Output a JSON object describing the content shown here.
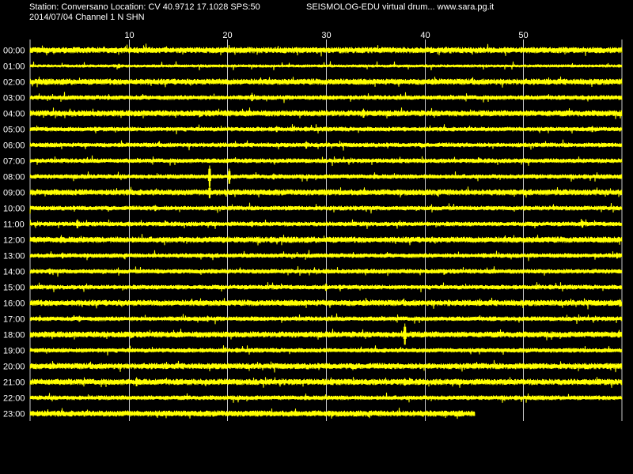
{
  "header": {
    "station_line": "Station: Conversano Location: CV 40.9712 17.1028 SPS:50",
    "software_line": "SEISMOLOG-EDU virtual drum... www.sara.pg.it",
    "date_channel_line": "2014/07/04  Channel 1 N SHN"
  },
  "colors": {
    "background": "#000000",
    "trace": "#ffff00",
    "gridline": "#c8c8c8",
    "text": "#ffffff"
  },
  "chart_data": {
    "type": "line",
    "title": "",
    "xlabel": "",
    "ylabel": "",
    "x_unit": "minute",
    "xlim": [
      0,
      60
    ],
    "x_ticks": [
      10,
      20,
      30,
      40,
      50
    ],
    "x_tick_labels": [
      "10",
      "20",
      "30",
      "40",
      "50"
    ],
    "grid": true,
    "rows": [
      {
        "label": "00:00",
        "end_minute": 60,
        "thickness": "thick",
        "events": [
          {
            "minute": 33.7,
            "size": 4
          }
        ]
      },
      {
        "label": "01:00",
        "end_minute": 60,
        "thickness": "thin",
        "events": [
          {
            "minute": 9,
            "size": 3
          }
        ]
      },
      {
        "label": "02:00",
        "end_minute": 60,
        "thickness": "thick",
        "events": []
      },
      {
        "label": "03:00",
        "end_minute": 60,
        "thickness": "normal",
        "events": [
          {
            "minute": 22.5,
            "size": 5
          },
          {
            "minute": 56,
            "size": 3
          }
        ]
      },
      {
        "label": "04:00",
        "end_minute": 60,
        "thickness": "thick",
        "events": [
          {
            "minute": 33.8,
            "size": 6
          },
          {
            "minute": 20,
            "size": 3
          }
        ]
      },
      {
        "label": "05:00",
        "end_minute": 60,
        "thickness": "normal",
        "events": [
          {
            "minute": 25,
            "size": 4
          },
          {
            "minute": 57,
            "size": 4
          },
          {
            "minute": 38,
            "size": 3
          }
        ]
      },
      {
        "label": "06:00",
        "end_minute": 60,
        "thickness": "normal",
        "events": [
          {
            "minute": 28,
            "size": 5
          },
          {
            "minute": 2.5,
            "size": 3
          }
        ]
      },
      {
        "label": "07:00",
        "end_minute": 60,
        "thickness": "normal",
        "events": [
          {
            "minute": 20,
            "size": 3
          }
        ]
      },
      {
        "label": "08:00",
        "end_minute": 60,
        "thickness": "normal",
        "events": [
          {
            "minute": 18.2,
            "size": 14
          },
          {
            "minute": 20.2,
            "size": 10
          },
          {
            "minute": 24.7,
            "size": 4
          }
        ]
      },
      {
        "label": "09:00",
        "end_minute": 60,
        "thickness": "thick",
        "events": [
          {
            "minute": 18.2,
            "size": 8
          },
          {
            "minute": 5.3,
            "size": 3
          }
        ]
      },
      {
        "label": "10:00",
        "end_minute": 60,
        "thickness": "normal",
        "events": [
          {
            "minute": 12.7,
            "size": 4
          },
          {
            "minute": 33,
            "size": 3
          }
        ]
      },
      {
        "label": "11:00",
        "end_minute": 60,
        "thickness": "normal",
        "events": [
          {
            "minute": 4.8,
            "size": 6
          },
          {
            "minute": 56,
            "size": 5
          },
          {
            "minute": 22.5,
            "size": 4
          }
        ]
      },
      {
        "label": "12:00",
        "end_minute": 60,
        "thickness": "thick",
        "events": []
      },
      {
        "label": "13:00",
        "end_minute": 60,
        "thickness": "normal",
        "events": [
          {
            "minute": 3.3,
            "size": 4
          },
          {
            "minute": 59.5,
            "size": 4
          },
          {
            "minute": 46,
            "size": 3
          }
        ]
      },
      {
        "label": "14:00",
        "end_minute": 60,
        "thickness": "normal",
        "events": [
          {
            "minute": 2,
            "size": 4
          },
          {
            "minute": 13,
            "size": 3
          },
          {
            "minute": 30,
            "size": 3
          }
        ]
      },
      {
        "label": "15:00",
        "end_minute": 60,
        "thickness": "normal",
        "events": [
          {
            "minute": 30,
            "size": 5
          },
          {
            "minute": 25,
            "size": 3
          },
          {
            "minute": 15,
            "size": 3
          }
        ]
      },
      {
        "label": "16:00",
        "end_minute": 60,
        "thickness": "thick",
        "events": [
          {
            "minute": 59.8,
            "size": 5
          },
          {
            "minute": 42.5,
            "size": 4
          }
        ]
      },
      {
        "label": "17:00",
        "end_minute": 60,
        "thickness": "normal",
        "events": [
          {
            "minute": 5,
            "size": 4
          },
          {
            "minute": 18,
            "size": 4
          },
          {
            "minute": 47,
            "size": 3
          }
        ]
      },
      {
        "label": "18:00",
        "end_minute": 60,
        "thickness": "thick",
        "events": [
          {
            "minute": 38,
            "size": 14
          },
          {
            "minute": 7.5,
            "size": 4
          },
          {
            "minute": 59,
            "size": 4
          }
        ]
      },
      {
        "label": "19:00",
        "end_minute": 60,
        "thickness": "normal",
        "events": []
      },
      {
        "label": "20:00",
        "end_minute": 60,
        "thickness": "thick",
        "events": [
          {
            "minute": 19.5,
            "size": 3
          }
        ]
      },
      {
        "label": "21:00",
        "end_minute": 60,
        "thickness": "thick",
        "events": [
          {
            "minute": 10.8,
            "size": 6
          },
          {
            "minute": 38,
            "size": 5
          },
          {
            "minute": 22,
            "size": 3
          }
        ]
      },
      {
        "label": "22:00",
        "end_minute": 60,
        "thickness": "normal",
        "events": [
          {
            "minute": 52,
            "size": 3
          }
        ]
      },
      {
        "label": "23:00",
        "end_minute": 45.1,
        "thickness": "thick",
        "events": [
          {
            "minute": 43.5,
            "size": 4
          }
        ]
      }
    ]
  }
}
